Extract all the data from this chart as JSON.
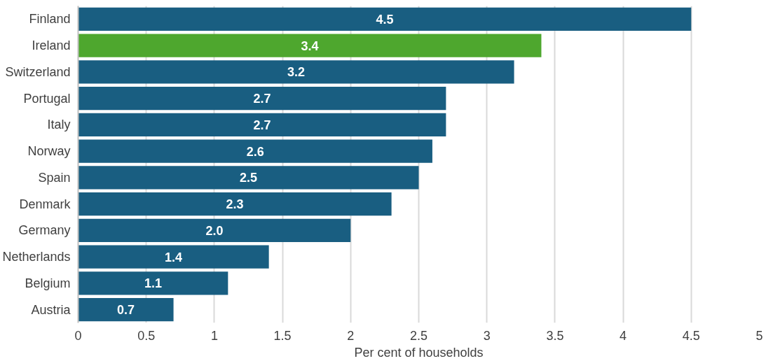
{
  "chart_data": {
    "type": "bar",
    "orientation": "horizontal",
    "xlabel": "Per cent of households",
    "categories": [
      "Finland",
      "Ireland",
      "Switzerland",
      "Portugal",
      "Italy",
      "Norway",
      "Spain",
      "Denmark",
      "Germany",
      "Netherlands",
      "Belgium",
      "Austria"
    ],
    "values": [
      4.5,
      3.4,
      3.2,
      2.7,
      2.7,
      2.6,
      2.5,
      2.3,
      2.0,
      1.4,
      1.1,
      0.7
    ],
    "value_labels": [
      "4.5",
      "3.4",
      "3.2",
      "2.7",
      "2.7",
      "2.6",
      "2.5",
      "2.3",
      "2.0",
      "1.4",
      "1.1",
      "0.7"
    ],
    "colors": [
      "#195e81",
      "#4ea72e",
      "#195e81",
      "#195e81",
      "#195e81",
      "#195e81",
      "#195e81",
      "#195e81",
      "#195e81",
      "#195e81",
      "#195e81",
      "#195e81"
    ],
    "xlim": [
      0,
      5
    ],
    "xticks": [
      0,
      0.5,
      1,
      1.5,
      2,
      2.5,
      3,
      3.5,
      4,
      4.5,
      5
    ],
    "grid": "x"
  }
}
